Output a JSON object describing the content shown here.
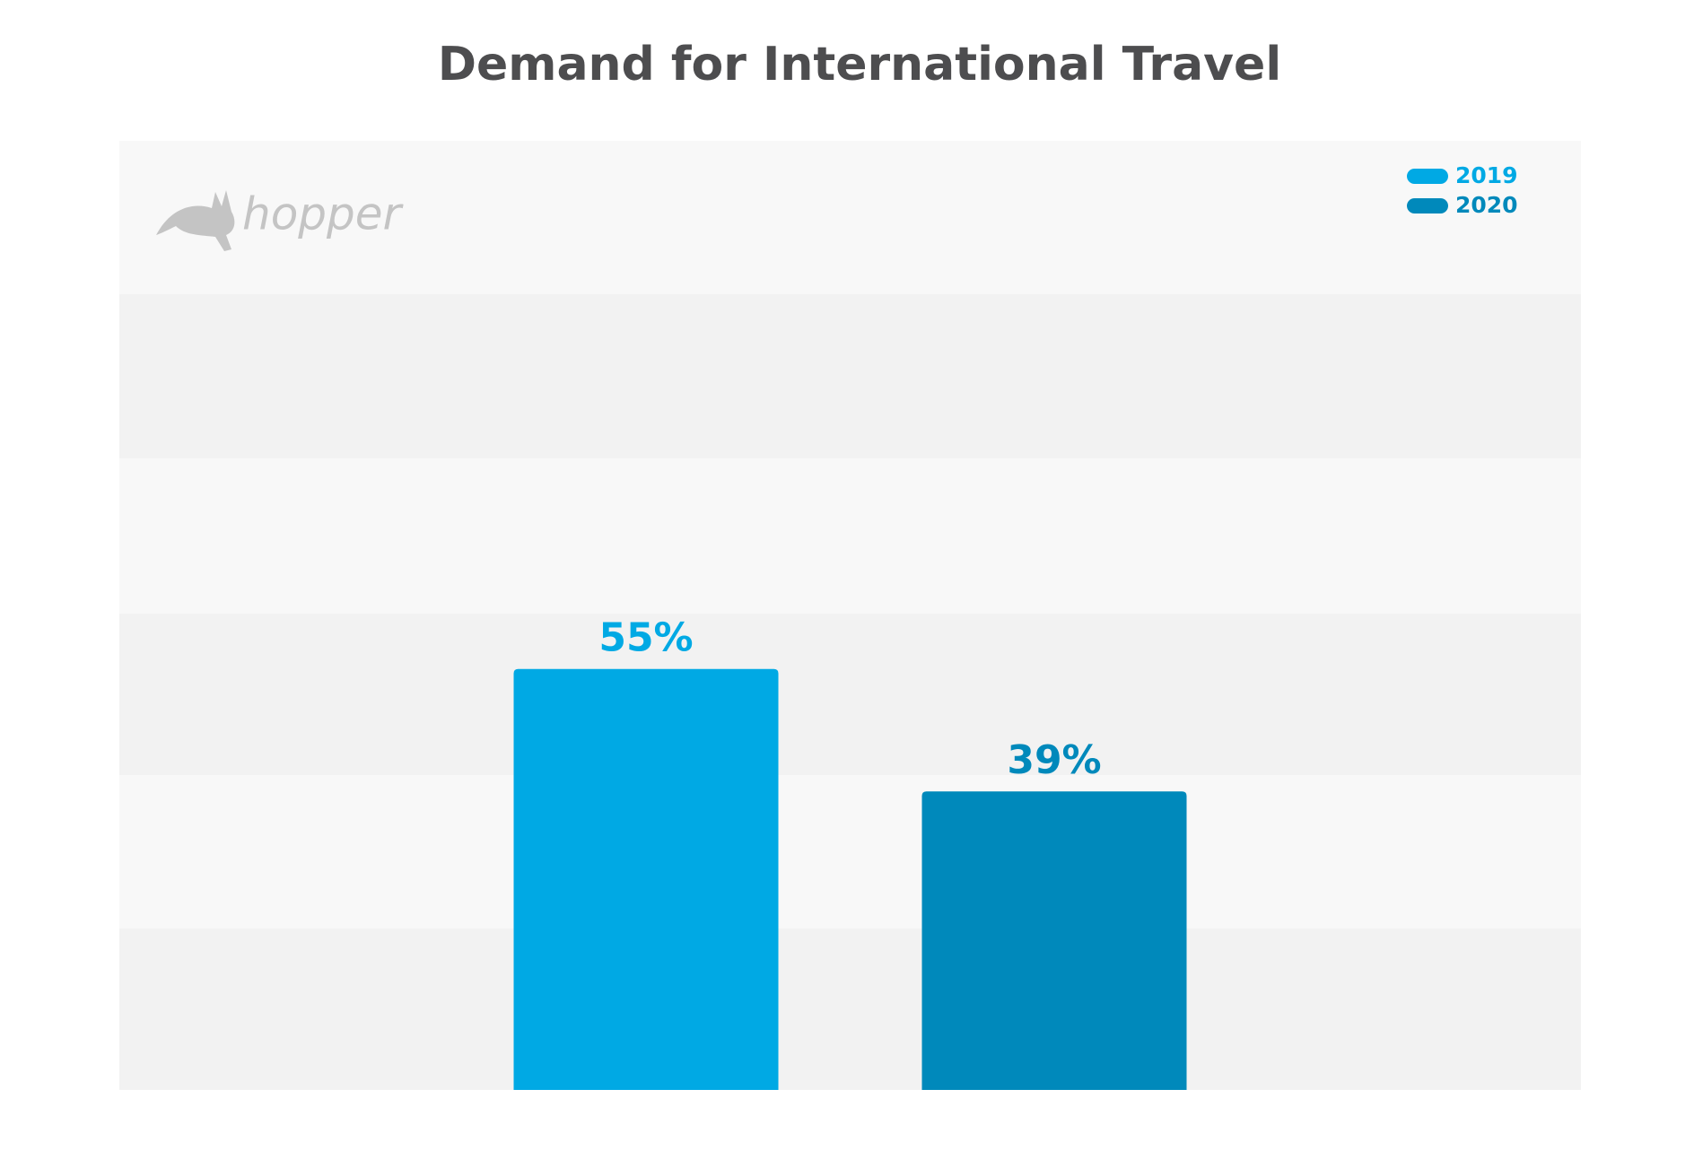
{
  "logo": "hopper",
  "chart_data": {
    "type": "bar",
    "title": "Demand for International Travel",
    "categories": [
      null
    ],
    "series": [
      {
        "name": "2019",
        "color": "#00a9e4",
        "values": [
          55
        ],
        "value_labels": [
          "55%"
        ]
      },
      {
        "name": "2020",
        "color": "#0089bb",
        "values": [
          39
        ],
        "value_labels": [
          "39%"
        ]
      }
    ],
    "ylim": [
      0,
      124
    ],
    "legend": "top-right"
  }
}
